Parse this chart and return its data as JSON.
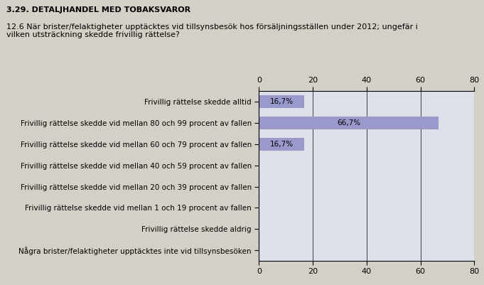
{
  "title1": "3.29. DETALJHANDEL MED TOBAKSVAROR",
  "title2": "12.6 När brister/felaktigheter upptäcktes vid tillsynsbesök hos försäljningsställen under 2012; ungefär i\nvilken utsträckning skedde frivillig rättelse?",
  "categories": [
    "Frivillig rättelse skedde alltid",
    "Frivillig rättelse skedde vid mellan 80 och 99 procent av fallen",
    "Frivillig rättelse skedde vid mellan 60 och 79 procent av fallen",
    "Frivillig rättelse skedde vid mellan 40 och 59 procent av fallen",
    "Frivillig rättelse skedde vid mellan 20 och 39 procent av fallen",
    "Frivillig rättelse skedde vid mellan 1 och 19 procent av fallen",
    "Frivillig rättelse skedde aldrig",
    "Några brister/felaktigheter upptäcktes inte vid tillsynsbesöken"
  ],
  "values": [
    16.7,
    66.7,
    16.7,
    0,
    0,
    0,
    0,
    0
  ],
  "labels": [
    "16,7%",
    "66,7%",
    "16,7%",
    "",
    "",
    "",
    "",
    ""
  ],
  "bar_color": "#9999cc",
  "xlim": [
    0,
    80
  ],
  "xticks": [
    0,
    20,
    40,
    60,
    80
  ],
  "background_color": "#d4d0c8",
  "plot_background_color": "#dde0e8",
  "title1_fontsize": 8,
  "title2_fontsize": 8,
  "label_fontsize": 7.5,
  "tick_fontsize": 8,
  "bar_height": 0.6
}
